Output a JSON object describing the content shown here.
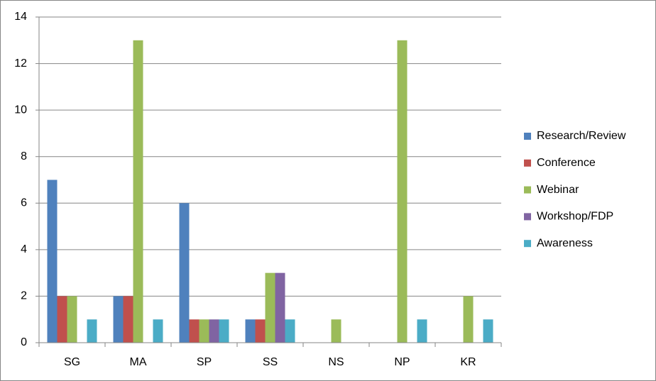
{
  "chart_data": {
    "type": "bar",
    "categories": [
      "SG",
      "MA",
      "SP",
      "SS",
      "NS",
      "NP",
      "KR"
    ],
    "series": [
      {
        "name": "Research/Review",
        "color": "#4f81bd",
        "values": [
          7,
          2,
          6,
          1,
          0,
          0,
          0
        ]
      },
      {
        "name": "Conference",
        "color": "#c0504d",
        "values": [
          2,
          2,
          1,
          1,
          0,
          0,
          0
        ]
      },
      {
        "name": "Webinar",
        "color": "#9bbb59",
        "values": [
          2,
          13,
          1,
          3,
          1,
          13,
          2
        ]
      },
      {
        "name": "Workshop/FDP",
        "color": "#8064a2",
        "values": [
          0,
          0,
          1,
          3,
          0,
          0,
          0
        ]
      },
      {
        "name": "Awareness",
        "color": "#4bacc6",
        "values": [
          1,
          1,
          1,
          1,
          0,
          1,
          1
        ]
      }
    ],
    "ylim": [
      0,
      14
    ],
    "yticks": [
      0,
      2,
      4,
      6,
      8,
      10,
      12,
      14
    ],
    "grid": true,
    "legend": "right"
  }
}
